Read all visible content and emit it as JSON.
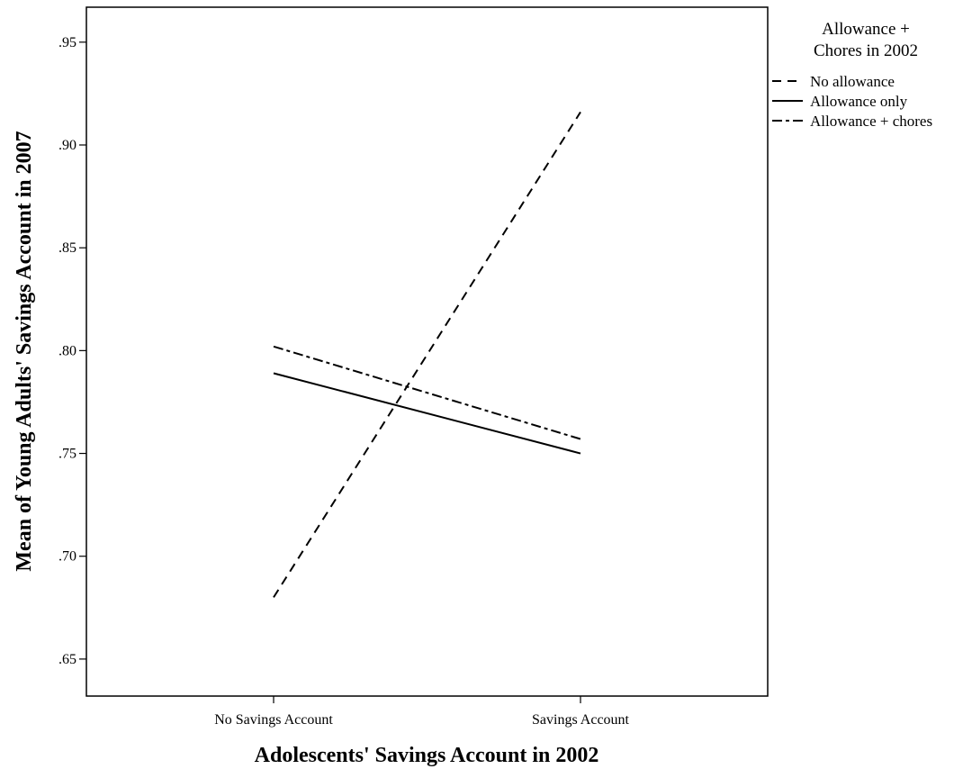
{
  "chart_data": {
    "type": "line",
    "xlabel": "Adolescents' Savings Account in 2002",
    "ylabel": "Mean of Young Adults' Savings Account in 2007",
    "categories": [
      "No Savings Account",
      "Savings Account"
    ],
    "ylim": [
      0.632,
      0.967
    ],
    "yticks": [
      0.65,
      0.7,
      0.75,
      0.8,
      0.85,
      0.9,
      0.95
    ],
    "ytick_labels": [
      ".65",
      ".70",
      ".75",
      ".80",
      ".85",
      ".90",
      ".95"
    ],
    "grid": false,
    "legend": {
      "title_lines": [
        "Allowance +",
        "Chores in 2002"
      ],
      "placement": "right"
    },
    "series": [
      {
        "name": "No allowance",
        "values": [
          0.68,
          0.916
        ],
        "dash": "dashed",
        "color": "#000000"
      },
      {
        "name": "Allowance only",
        "values": [
          0.789,
          0.75
        ],
        "dash": "solid",
        "color": "#000000"
      },
      {
        "name": "Allowance + chores",
        "values": [
          0.802,
          0.757
        ],
        "dash": "dashdot",
        "color": "#000000"
      }
    ]
  }
}
